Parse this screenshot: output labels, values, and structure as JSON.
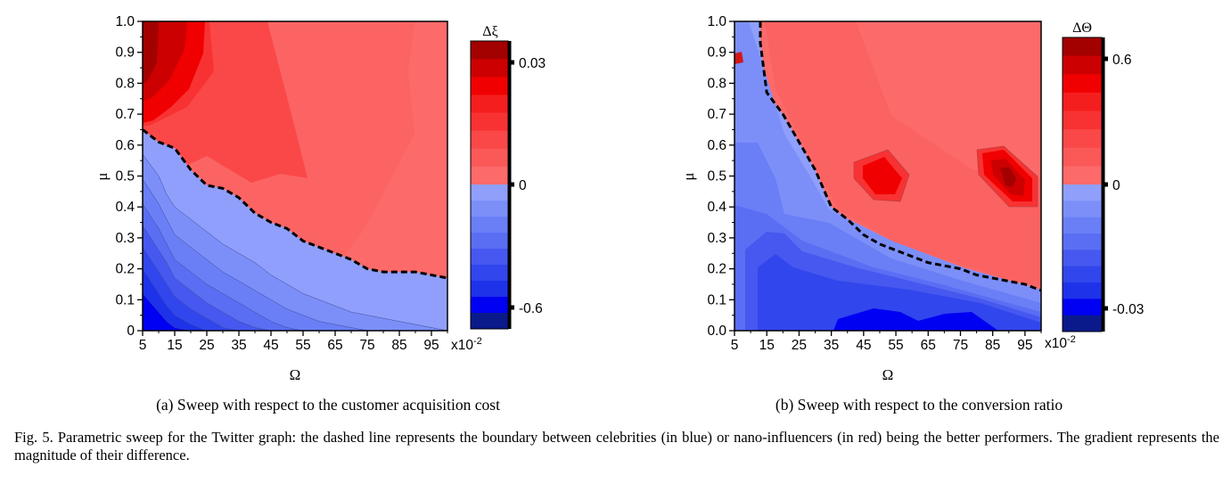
{
  "chart_data": [
    {
      "type": "heatmap",
      "subplot": "(a)",
      "xlabel": "Ω",
      "ylabel": "μ",
      "x_scale_label": "x10",
      "x_scale_exp": "-2",
      "x_ticks": [
        "5",
        "15",
        "25",
        "35",
        "45",
        "55",
        "65",
        "75",
        "85",
        "95"
      ],
      "y_ticks": [
        "0",
        "0.1",
        "0.2",
        "0.3",
        "0.4",
        "0.5",
        "0.6",
        "0.7",
        "0.8",
        "0.9",
        "1.0"
      ],
      "xlim": [
        5,
        100
      ],
      "ylim": [
        0,
        1.0
      ],
      "colorbar_title": "Δξ",
      "colorbar_ticks": [
        "0.03",
        "0",
        "-0.6"
      ],
      "boundary": {
        "x": [
          5,
          7.5,
          10,
          12.5,
          15,
          20,
          25,
          30,
          35,
          40,
          45,
          50,
          55,
          60,
          65,
          70,
          75,
          80,
          85,
          90,
          95,
          100
        ],
        "y": [
          0.65,
          0.63,
          0.61,
          0.6,
          0.59,
          0.52,
          0.47,
          0.46,
          0.43,
          0.38,
          0.35,
          0.33,
          0.29,
          0.27,
          0.25,
          0.23,
          0.2,
          0.19,
          0.19,
          0.19,
          0.18,
          0.17
        ]
      },
      "contour_levels": [
        {
          "y": [
            0.57,
            0.535,
            0.5,
            0.44,
            0.4,
            0.36,
            0.32,
            0.28,
            0.25,
            0.22,
            0.18,
            0.15,
            0.12,
            0.1,
            0.08,
            0.06,
            0.05,
            0.04,
            0.03,
            0.02,
            0.01,
            0.0
          ]
        },
        {
          "y": [
            0.49,
            0.45,
            0.41,
            0.36,
            0.31,
            0.27,
            0.23,
            0.19,
            0.16,
            0.13,
            0.1,
            0.07,
            0.05,
            0.03,
            0.02,
            0.01,
            0.0,
            0.0,
            0.0,
            0.0,
            0.0,
            0.0
          ]
        },
        {
          "y": [
            0.41,
            0.37,
            0.33,
            0.28,
            0.23,
            0.19,
            0.15,
            0.12,
            0.09,
            0.06,
            0.03,
            0.01,
            0.0,
            0.0,
            0.0,
            0.0,
            0.0,
            0.0,
            0.0,
            0.0,
            0.0,
            0.0
          ]
        },
        {
          "y": [
            0.34,
            0.3,
            0.26,
            0.22,
            0.17,
            0.13,
            0.09,
            0.06,
            0.03,
            0.01,
            0.0,
            0.0,
            0.0,
            0.0,
            0.0,
            0.0,
            0.0,
            0.0,
            0.0,
            0.0,
            0.0,
            0.0
          ]
        },
        {
          "y": [
            0.27,
            0.23,
            0.19,
            0.15,
            0.11,
            0.07,
            0.04,
            0.01,
            0.0,
            0.0,
            0.0,
            0.0,
            0.0,
            0.0,
            0.0,
            0.0,
            0.0,
            0.0,
            0.0,
            0.0,
            0.0,
            0.0
          ]
        },
        {
          "y": [
            0.2,
            0.16,
            0.12,
            0.08,
            0.05,
            0.02,
            0.0,
            0.0,
            0.0,
            0.0,
            0.0,
            0.0,
            0.0,
            0.0,
            0.0,
            0.0,
            0.0,
            0.0,
            0.0,
            0.0,
            0.0,
            0.0
          ]
        },
        {
          "y": [
            0.12,
            0.09,
            0.06,
            0.03,
            0.01,
            0.0,
            0.0,
            0.0,
            0.0,
            0.0,
            0.0,
            0.0,
            0.0,
            0.0,
            0.0,
            0.0,
            0.0,
            0.0,
            0.0,
            0.0,
            0.0,
            0.0
          ]
        }
      ]
    },
    {
      "type": "heatmap",
      "subplot": "(b)",
      "xlabel": "Ω",
      "ylabel": "μ",
      "x_scale_label": "x10",
      "x_scale_exp": "-2",
      "x_ticks": [
        "5",
        "15",
        "25",
        "35",
        "45",
        "55",
        "65",
        "75",
        "85",
        "95"
      ],
      "y_ticks": [
        "0.0",
        "0.1",
        "0.2",
        "0.3",
        "0.4",
        "0.5",
        "0.6",
        "0.7",
        "0.8",
        "0.9",
        "1.0"
      ],
      "xlim": [
        5,
        100
      ],
      "ylim": [
        0,
        1.0
      ],
      "colorbar_title": "ΔΘ",
      "colorbar_ticks": [
        "0.6",
        "0",
        "-0.03"
      ],
      "boundary": {
        "x": [
          13,
          13,
          14,
          15,
          20,
          25,
          30,
          35,
          40,
          45,
          50,
          55,
          60,
          65,
          70,
          75,
          80,
          85,
          90,
          95,
          100
        ],
        "y": [
          1.0,
          0.93,
          0.85,
          0.77,
          0.7,
          0.61,
          0.52,
          0.4,
          0.36,
          0.31,
          0.28,
          0.26,
          0.24,
          0.22,
          0.21,
          0.2,
          0.18,
          0.17,
          0.16,
          0.15,
          0.13
        ]
      },
      "hotspots": [
        {
          "x": 50,
          "y": 0.5,
          "label": "local maximum"
        },
        {
          "x": 90,
          "y": 0.5,
          "label": "local maximum"
        }
      ]
    }
  ],
  "captions": {
    "a": "(a) Sweep with respect to the customer acquisition cost",
    "b": "(b) Sweep with respect to the conversion ratio",
    "figure": "Fig. 5.  Parametric sweep for the Twitter graph: the dashed line represents the boundary between celebrities (in blue) or nano-influencers (in red) being the better performers. The gradient represents the magnitude of their difference."
  },
  "colors": {
    "red_levels": [
      "#fc6a6a",
      "#fb5858",
      "#fa4848",
      "#f83232",
      "#f51e1e",
      "#f00000",
      "#cc0000",
      "#a30000"
    ],
    "blue_levels": [
      "#8f9ffb",
      "#7c8ff9",
      "#6a7ff6",
      "#5a6ef3",
      "#4658ef",
      "#3146ec",
      "#1e32ea",
      "#0000f2",
      "#0a1a8a"
    ]
  }
}
